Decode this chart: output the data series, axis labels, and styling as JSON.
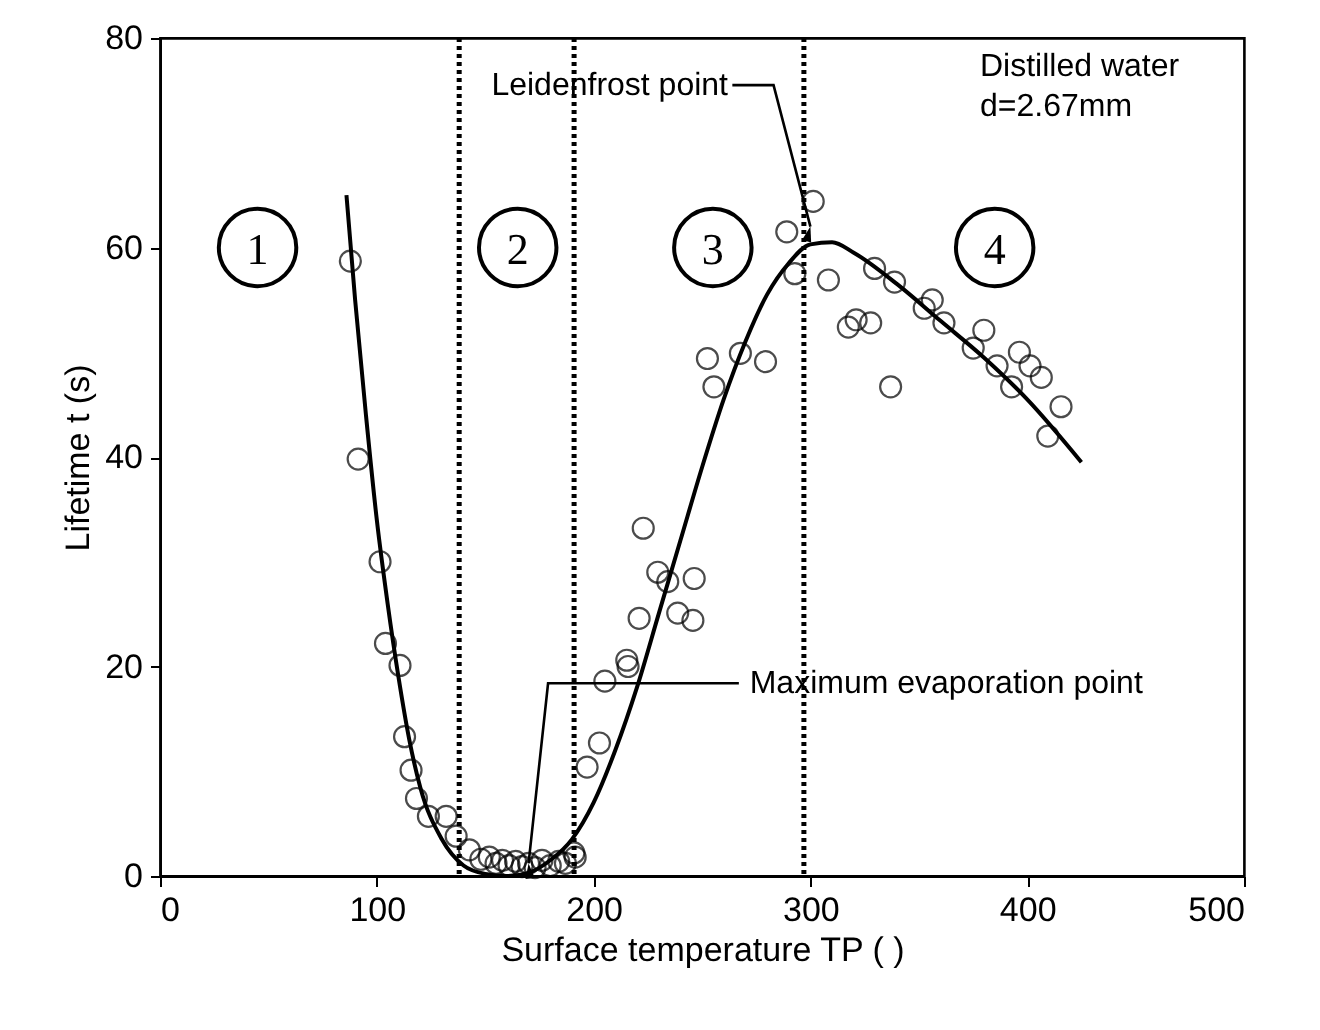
{
  "chart_data": {
    "type": "scatter",
    "xlabel": "Surface temperature  TP  (   )",
    "ylabel": "Lifetime   t (s)",
    "xlim": [
      0,
      500
    ],
    "xticks": [
      0,
      100,
      200,
      300,
      400,
      500
    ],
    "ylim": [
      0,
      80
    ],
    "yticks": [
      0,
      20,
      40,
      60,
      80
    ],
    "grid": false,
    "series": [
      {
        "type": "scatter",
        "marker": "circle",
        "color": "#000000",
        "x": [
          87.8,
          91.4,
          101.5,
          104,
          110.7,
          112.8,
          115.8,
          118.3,
          123.8,
          132,
          136.6,
          142.7,
          148,
          151.9,
          155,
          158,
          161,
          164,
          167,
          170,
          173,
          176.2,
          180,
          183.9,
          187,
          190.9,
          191.5,
          197,
          202.7,
          205.2,
          215.3,
          215.9,
          221,
          222.9,
          229.6,
          234.2,
          238.8,
          245.8,
          246.4,
          252.5,
          255.5,
          267.7,
          279.3,
          289.1,
          292.8,
          301.3,
          308.3,
          317.5,
          321.1,
          327.8,
          329.6,
          337,
          338.8,
          352.5,
          356.2,
          361.6,
          375.1,
          380,
          386.1,
          392.8,
          396.4,
          401.3,
          406.5,
          409.5,
          415.6
        ],
        "values": [
          58.7,
          39.8,
          30.0,
          22.2,
          20.1,
          13.3,
          10.1,
          7.4,
          5.7,
          5.7,
          3.8,
          2.5,
          1.6,
          1.8,
          1.2,
          1.5,
          1.0,
          1.4,
          0.9,
          1.2,
          0.8,
          1.5,
          1.0,
          1.4,
          1.2,
          2.2,
          1.8,
          10.4,
          12.7,
          18.6,
          20.6,
          20.0,
          24.6,
          33.2,
          29.0,
          28.1,
          25.1,
          24.4,
          28.4,
          49.4,
          46.7,
          49.9,
          49.1,
          61.5,
          57.5,
          64.4,
          56.9,
          52.4,
          53.1,
          52.8,
          58.0,
          46.7,
          56.7,
          54.2,
          55.0,
          52.8,
          50.4,
          52.1,
          48.7,
          46.7,
          50.0,
          48.7,
          47.6,
          42.0,
          44.8
        ]
      },
      {
        "type": "line",
        "marker": "none",
        "color": "#000000",
        "x": [
          86,
          90,
          95,
          100,
          105,
          110,
          115,
          120,
          130,
          140,
          150,
          160,
          170,
          180,
          190,
          200,
          210,
          220,
          230,
          240,
          250,
          260,
          270,
          280,
          290,
          300,
          310,
          320,
          340,
          360,
          380,
          400,
          425
        ],
        "values": [
          65,
          55,
          44,
          34,
          26,
          19,
          13,
          8.5,
          3.5,
          1,
          0.2,
          0,
          0.3,
          1.5,
          3.5,
          7,
          12,
          18,
          25,
          32,
          39,
          45.5,
          51,
          55.5,
          58.5,
          60.3,
          60.5,
          59.5,
          56.5,
          53,
          49.5,
          45.5,
          39.5
        ]
      }
    ],
    "ref_lines": [
      {
        "axis": "x",
        "value": 138,
        "color": "#000000",
        "line_style": "dotted"
      },
      {
        "axis": "x",
        "value": 191,
        "color": "#000000",
        "line_style": "dotted"
      },
      {
        "axis": "x",
        "value": 297,
        "color": "#000000",
        "line_style": "dotted"
      }
    ],
    "annotations": [
      {
        "text": "Leidenfrost point",
        "x": 300,
        "y": 62
      },
      {
        "text": "Maximum evaporation point",
        "x": 170,
        "y": 1.2
      },
      "Distilled water",
      "d=2.67mm",
      {
        "text": "1",
        "x": 45,
        "y": 60
      },
      {
        "text": "2",
        "x": 165,
        "y": 60
      },
      {
        "text": "3",
        "x": 255,
        "y": 60
      },
      {
        "text": "4",
        "x": 385,
        "y": 60
      }
    ]
  }
}
